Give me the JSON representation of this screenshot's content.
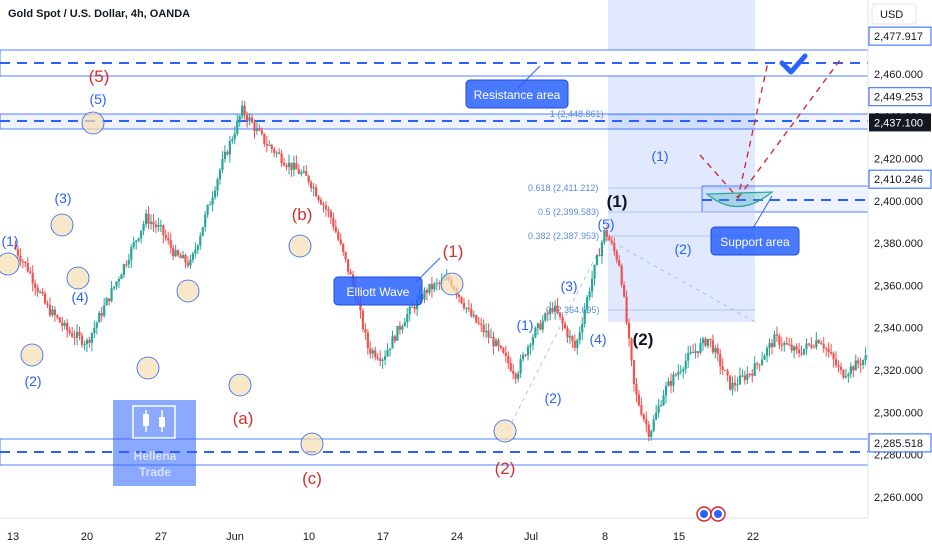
{
  "header": {
    "title": "Gold Spot / U.S. Dollar, 4h, OANDA",
    "currency": "USD"
  },
  "price_axis": {
    "ticks": [
      "2,460.000",
      "2,440.000",
      "2,420.000",
      "2,400.000",
      "2,380.000",
      "2,360.000",
      "2,340.000",
      "2,320.000",
      "2,300.000",
      "2,280.000",
      "2,260.000"
    ],
    "highlight_labels": [
      {
        "text": "2,477.917",
        "style": "outline"
      },
      {
        "text": "2,449.253",
        "style": "outline"
      },
      {
        "text": "2,437.100",
        "style": "dark"
      },
      {
        "text": "2,410.246",
        "style": "outline"
      },
      {
        "text": "2,285.518",
        "style": "outline"
      }
    ]
  },
  "time_axis": {
    "ticks": [
      "13",
      "20",
      "27",
      "Jun",
      "10",
      "17",
      "24",
      "Jul",
      "8",
      "15",
      "22"
    ]
  },
  "annotations": {
    "resistance": "Resistance area",
    "support": "Support area",
    "elliott": "Elliott Wave",
    "watermark_line1": "Hellena",
    "watermark_line2": "Trade"
  },
  "fib_levels": [
    {
      "text": "1 (2,448.861)"
    },
    {
      "text": "0.618 (2,411.212)"
    },
    {
      "text": "0.5 (2,399.583)"
    },
    {
      "text": "0.382 (2,387.953)"
    },
    {
      "text": "0 (2,364.695)"
    }
  ],
  "wave_labels": {
    "blue": [
      "(1)",
      "(2)",
      "(3)",
      "(4)",
      "(5)",
      "(1)",
      "(2)",
      "(3)",
      "(4)",
      "(5)",
      "(1)",
      "(2)"
    ],
    "red": [
      "(5)",
      "(b)",
      "(a)",
      "(c)",
      "(1)",
      "(2)"
    ],
    "dark": [
      "(1)",
      "(2)"
    ]
  },
  "colors": {
    "up": "#26a69a",
    "down": "#ef5350",
    "accent": "#2962ff",
    "wave_red": "#d32f2f"
  },
  "chart_data": {
    "type": "candlestick",
    "title": "Gold Spot / U.S. Dollar, 4h, OANDA",
    "symbol": "XAUUSD",
    "timeframe": "4h",
    "ylim": [
      2250,
      2495
    ],
    "levels": [
      2477.917,
      2449.253,
      2437.1,
      2410.246,
      2285.518
    ],
    "path_points": [
      [
        0,
        2379
      ],
      [
        0.2,
        2368
      ],
      [
        0.45,
        2350
      ],
      [
        0.75,
        2338
      ],
      [
        1.0,
        2333
      ],
      [
        1.4,
        2362
      ],
      [
        1.8,
        2392
      ],
      [
        2.0,
        2386
      ],
      [
        2.2,
        2374
      ],
      [
        2.4,
        2370
      ],
      [
        2.8,
        2415
      ],
      [
        3.1,
        2443
      ],
      [
        3.4,
        2428
      ],
      [
        3.7,
        2418
      ],
      [
        4.0,
        2410
      ],
      [
        4.3,
        2392
      ],
      [
        4.6,
        2360
      ],
      [
        4.8,
        2330
      ],
      [
        5.0,
        2326
      ],
      [
        5.3,
        2345
      ],
      [
        5.6,
        2358
      ],
      [
        5.9,
        2363
      ],
      [
        6.2,
        2345
      ],
      [
        6.5,
        2333
      ],
      [
        6.8,
        2318
      ],
      [
        7.0,
        2335
      ],
      [
        7.3,
        2350
      ],
      [
        7.6,
        2330
      ],
      [
        7.8,
        2360
      ],
      [
        8.0,
        2386
      ],
      [
        8.2,
        2370
      ],
      [
        8.4,
        2310
      ],
      [
        8.6,
        2290
      ],
      [
        8.8,
        2310
      ],
      [
        9.1,
        2325
      ],
      [
        9.4,
        2335
      ],
      [
        9.7,
        2312
      ],
      [
        10.0,
        2320
      ],
      [
        10.3,
        2335
      ],
      [
        10.6,
        2328
      ],
      [
        10.9,
        2335
      ],
      [
        11.2,
        2318
      ],
      [
        11.5,
        2325
      ],
      [
        11.8,
        2332
      ],
      [
        12.0,
        2330
      ],
      [
        12.3,
        2362
      ],
      [
        12.6,
        2370
      ],
      [
        12.8,
        2325
      ],
      [
        13.0,
        2328
      ],
      [
        13.2,
        2320
      ],
      [
        13.5,
        2318
      ],
      [
        13.8,
        2300
      ],
      [
        14.0,
        2298
      ],
      [
        14.2,
        2315
      ],
      [
        14.5,
        2330
      ],
      [
        14.8,
        2326
      ],
      [
        15.0,
        2325
      ],
      [
        15.3,
        2340
      ],
      [
        15.6,
        2364
      ],
      [
        15.9,
        2372
      ],
      [
        16.1,
        2390
      ],
      [
        16.3,
        2385
      ],
      [
        16.6,
        2362
      ],
      [
        16.9,
        2353
      ],
      [
        17.2,
        2360
      ],
      [
        17.5,
        2375
      ],
      [
        17.7,
        2385
      ],
      [
        17.9,
        2414
      ],
      [
        18.1,
        2420
      ],
      [
        18.3,
        2405
      ],
      [
        18.5,
        2412
      ],
      [
        18.7,
        2432
      ],
      [
        18.85,
        2437
      ]
    ]
  }
}
